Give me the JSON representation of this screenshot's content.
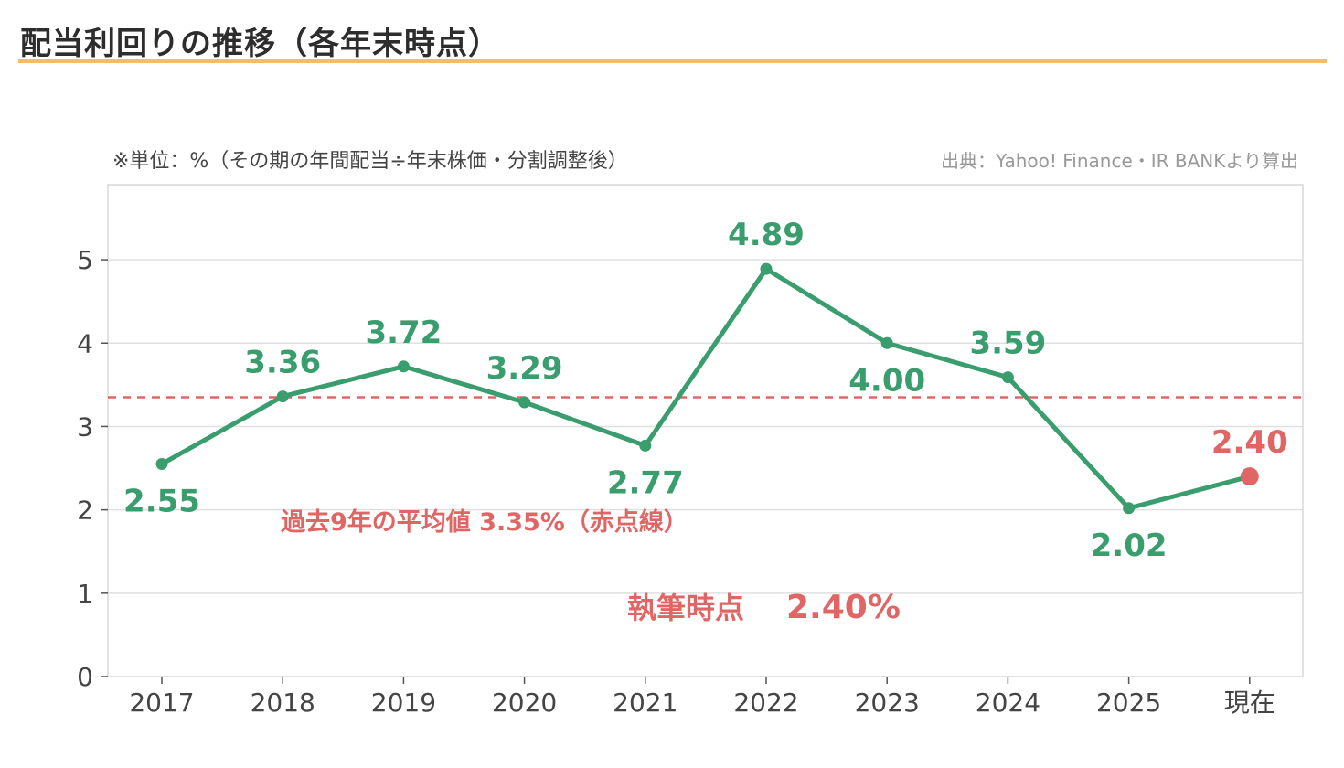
{
  "header": {
    "title": "配当利回りの推移（各年末時点）"
  },
  "notes": {
    "unit": "※単位：%（その期の年間配当÷年末株価・分割調整後）",
    "source": "出典：Yahoo! Finance・IR BANKより算出"
  },
  "annotations": {
    "average_label": "過去9年の平均値 3.35%（赤点線）",
    "current_label_prefix": "執筆時点",
    "current_label_value": "2.40%"
  },
  "colors": {
    "series": "#3a9d6e",
    "current": "#e06666",
    "average_line": "#e06666",
    "title_underline": "#f0c060",
    "grid": "#e0e0e0"
  },
  "chart_data": {
    "type": "line",
    "categories": [
      "2017",
      "2018",
      "2019",
      "2020",
      "2021",
      "2022",
      "2023",
      "2024",
      "2025",
      "現在"
    ],
    "series": [
      {
        "values": [
          2.55,
          3.36,
          3.72,
          3.29,
          2.77,
          4.89,
          4.0,
          3.59,
          2.02,
          2.4
        ],
        "labels": [
          "2.55",
          "3.36",
          "3.72",
          "3.29",
          "2.77",
          "4.89",
          "4.00",
          "3.59",
          "2.02",
          "2.40"
        ],
        "label_positions": [
          "below",
          "above",
          "above",
          "above",
          "below",
          "above",
          "below",
          "above",
          "below",
          "above"
        ]
      }
    ],
    "highlight_index": 9,
    "reference_line": {
      "value": 3.35,
      "style": "dashed"
    },
    "yticks": [
      "0",
      "1",
      "2",
      "3",
      "4",
      "5"
    ],
    "ylim": [
      0,
      5.9
    ],
    "grid": true
  }
}
